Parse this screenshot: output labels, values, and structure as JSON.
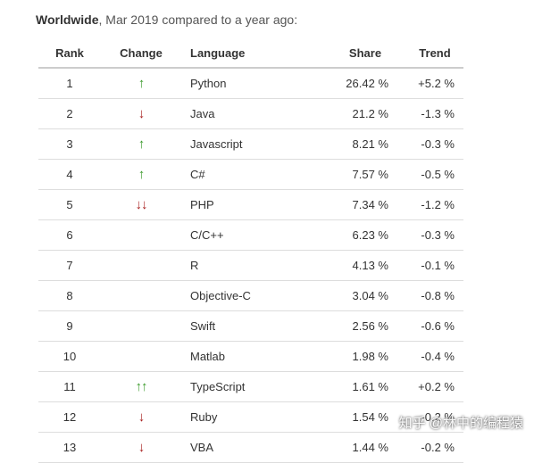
{
  "caption": {
    "bold": "Worldwide",
    "rest": ", Mar 2019 compared to a year ago:"
  },
  "headers": {
    "rank": "Rank",
    "change": "Change",
    "language": "Language",
    "share": "Share",
    "trend": "Trend"
  },
  "rows": [
    {
      "rank": "1",
      "change": "↑",
      "change_dir": "up",
      "language": "Python",
      "share": "26.42 %",
      "trend": "+5.2 %"
    },
    {
      "rank": "2",
      "change": "↓",
      "change_dir": "down",
      "language": "Java",
      "share": "21.2 %",
      "trend": "-1.3 %"
    },
    {
      "rank": "3",
      "change": "↑",
      "change_dir": "up",
      "language": "Javascript",
      "share": "8.21 %",
      "trend": "-0.3 %"
    },
    {
      "rank": "4",
      "change": "↑",
      "change_dir": "up",
      "language": "C#",
      "share": "7.57 %",
      "trend": "-0.5 %"
    },
    {
      "rank": "5",
      "change": "↓↓",
      "change_dir": "down",
      "language": "PHP",
      "share": "7.34 %",
      "trend": "-1.2 %"
    },
    {
      "rank": "6",
      "change": "",
      "change_dir": "",
      "language": "C/C++",
      "share": "6.23 %",
      "trend": "-0.3 %"
    },
    {
      "rank": "7",
      "change": "",
      "change_dir": "",
      "language": "R",
      "share": "4.13 %",
      "trend": "-0.1 %"
    },
    {
      "rank": "8",
      "change": "",
      "change_dir": "",
      "language": "Objective-C",
      "share": "3.04 %",
      "trend": "-0.8 %"
    },
    {
      "rank": "9",
      "change": "",
      "change_dir": "",
      "language": "Swift",
      "share": "2.56 %",
      "trend": "-0.6 %"
    },
    {
      "rank": "10",
      "change": "",
      "change_dir": "",
      "language": "Matlab",
      "share": "1.98 %",
      "trend": "-0.4 %"
    },
    {
      "rank": "11",
      "change": "↑↑",
      "change_dir": "up",
      "language": "TypeScript",
      "share": "1.61 %",
      "trend": "+0.2 %"
    },
    {
      "rank": "12",
      "change": "↓",
      "change_dir": "down",
      "language": "Ruby",
      "share": "1.54 %",
      "trend": "-0.2 %"
    },
    {
      "rank": "13",
      "change": "↓",
      "change_dir": "down",
      "language": "VBA",
      "share": "1.44 %",
      "trend": "-0.2 %"
    }
  ],
  "colors": {
    "up": "#3a9a2a",
    "down": "#a8201f"
  },
  "watermark": "知乎 @林中的编程猿"
}
